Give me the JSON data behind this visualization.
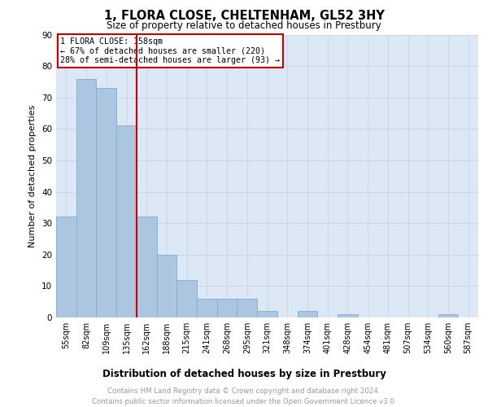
{
  "title": "1, FLORA CLOSE, CHELTENHAM, GL52 3HY",
  "subtitle": "Size of property relative to detached houses in Prestbury",
  "xlabel": "Distribution of detached houses by size in Prestbury",
  "ylabel": "Number of detached properties",
  "bins": [
    "55sqm",
    "82sqm",
    "109sqm",
    "135sqm",
    "162sqm",
    "188sqm",
    "215sqm",
    "241sqm",
    "268sqm",
    "295sqm",
    "321sqm",
    "348sqm",
    "374sqm",
    "401sqm",
    "428sqm",
    "454sqm",
    "481sqm",
    "507sqm",
    "534sqm",
    "560sqm",
    "587sqm"
  ],
  "values": [
    32,
    76,
    73,
    61,
    32,
    20,
    12,
    6,
    6,
    6,
    2,
    0,
    2,
    0,
    1,
    0,
    0,
    0,
    0,
    1,
    0
  ],
  "bar_color": "#adc6e0",
  "bar_edge_color": "#7aafd4",
  "vline_x_index": 4,
  "vline_color": "#cc0000",
  "annotation_box_text": "1 FLORA CLOSE: 158sqm\n← 67% of detached houses are smaller (220)\n28% of semi-detached houses are larger (93) →",
  "annotation_box_color": "#cc0000",
  "annotation_box_bg": "#ffffff",
  "ylim": [
    0,
    90
  ],
  "yticks": [
    0,
    10,
    20,
    30,
    40,
    50,
    60,
    70,
    80,
    90
  ],
  "grid_color": "#c8d8e8",
  "footer_text": "Contains HM Land Registry data © Crown copyright and database right 2024.\nContains public sector information licensed under the Open Government Licence v3.0.",
  "bg_color": "#dce8f5"
}
